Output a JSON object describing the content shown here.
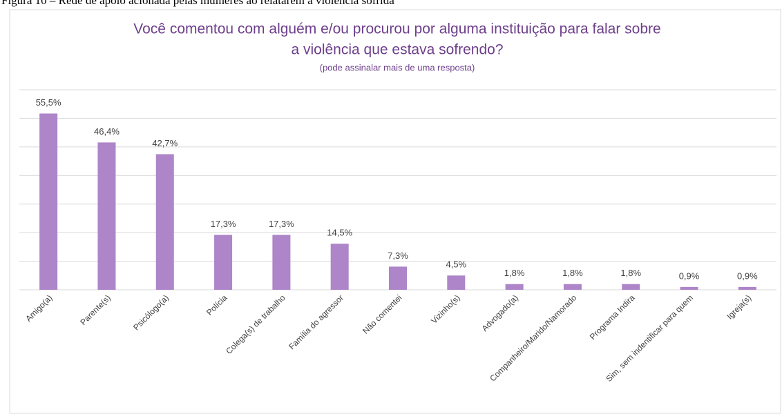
{
  "caption": "Figura 10 – Rede de apoio acionada pelas mulheres ao relatarem a violência sofrida",
  "chart_data": {
    "type": "bar",
    "title": [
      "Você comentou com alguém e/ou procurou por alguma instituição para falar sobre",
      "a violência que estava sofrendo?"
    ],
    "subtitle": "(pode assinalar mais de uma resposta)",
    "categories": [
      "Amigo(a)",
      "Parente(s)",
      "Psicólogo(a)",
      "Polícia",
      "Colega(s) de trabalho",
      "Família do agressor",
      "Não comentei",
      "Vizinho(s)",
      "Advogado(a)",
      "Companheiro/Marido/Namorado",
      "Programa Indira",
      "Sim, sem indentificar para quem",
      "Igreja(s)"
    ],
    "values": [
      55.5,
      46.4,
      42.7,
      17.3,
      17.3,
      14.5,
      7.3,
      4.5,
      1.8,
      1.8,
      1.8,
      0.9,
      0.9
    ],
    "value_labels": [
      "55,5%",
      "46,4%",
      "42,7%",
      "17,3%",
      "17,3%",
      "14,5%",
      "7,3%",
      "4,5%",
      "1,8%",
      "1,8%",
      "1,8%",
      "0,9%",
      "0,9%"
    ],
    "color": "#ad85c8",
    "ylim": [
      0,
      63
    ],
    "yticks": [
      0,
      9,
      18,
      27,
      36,
      45,
      54,
      63
    ],
    "grid": true
  }
}
